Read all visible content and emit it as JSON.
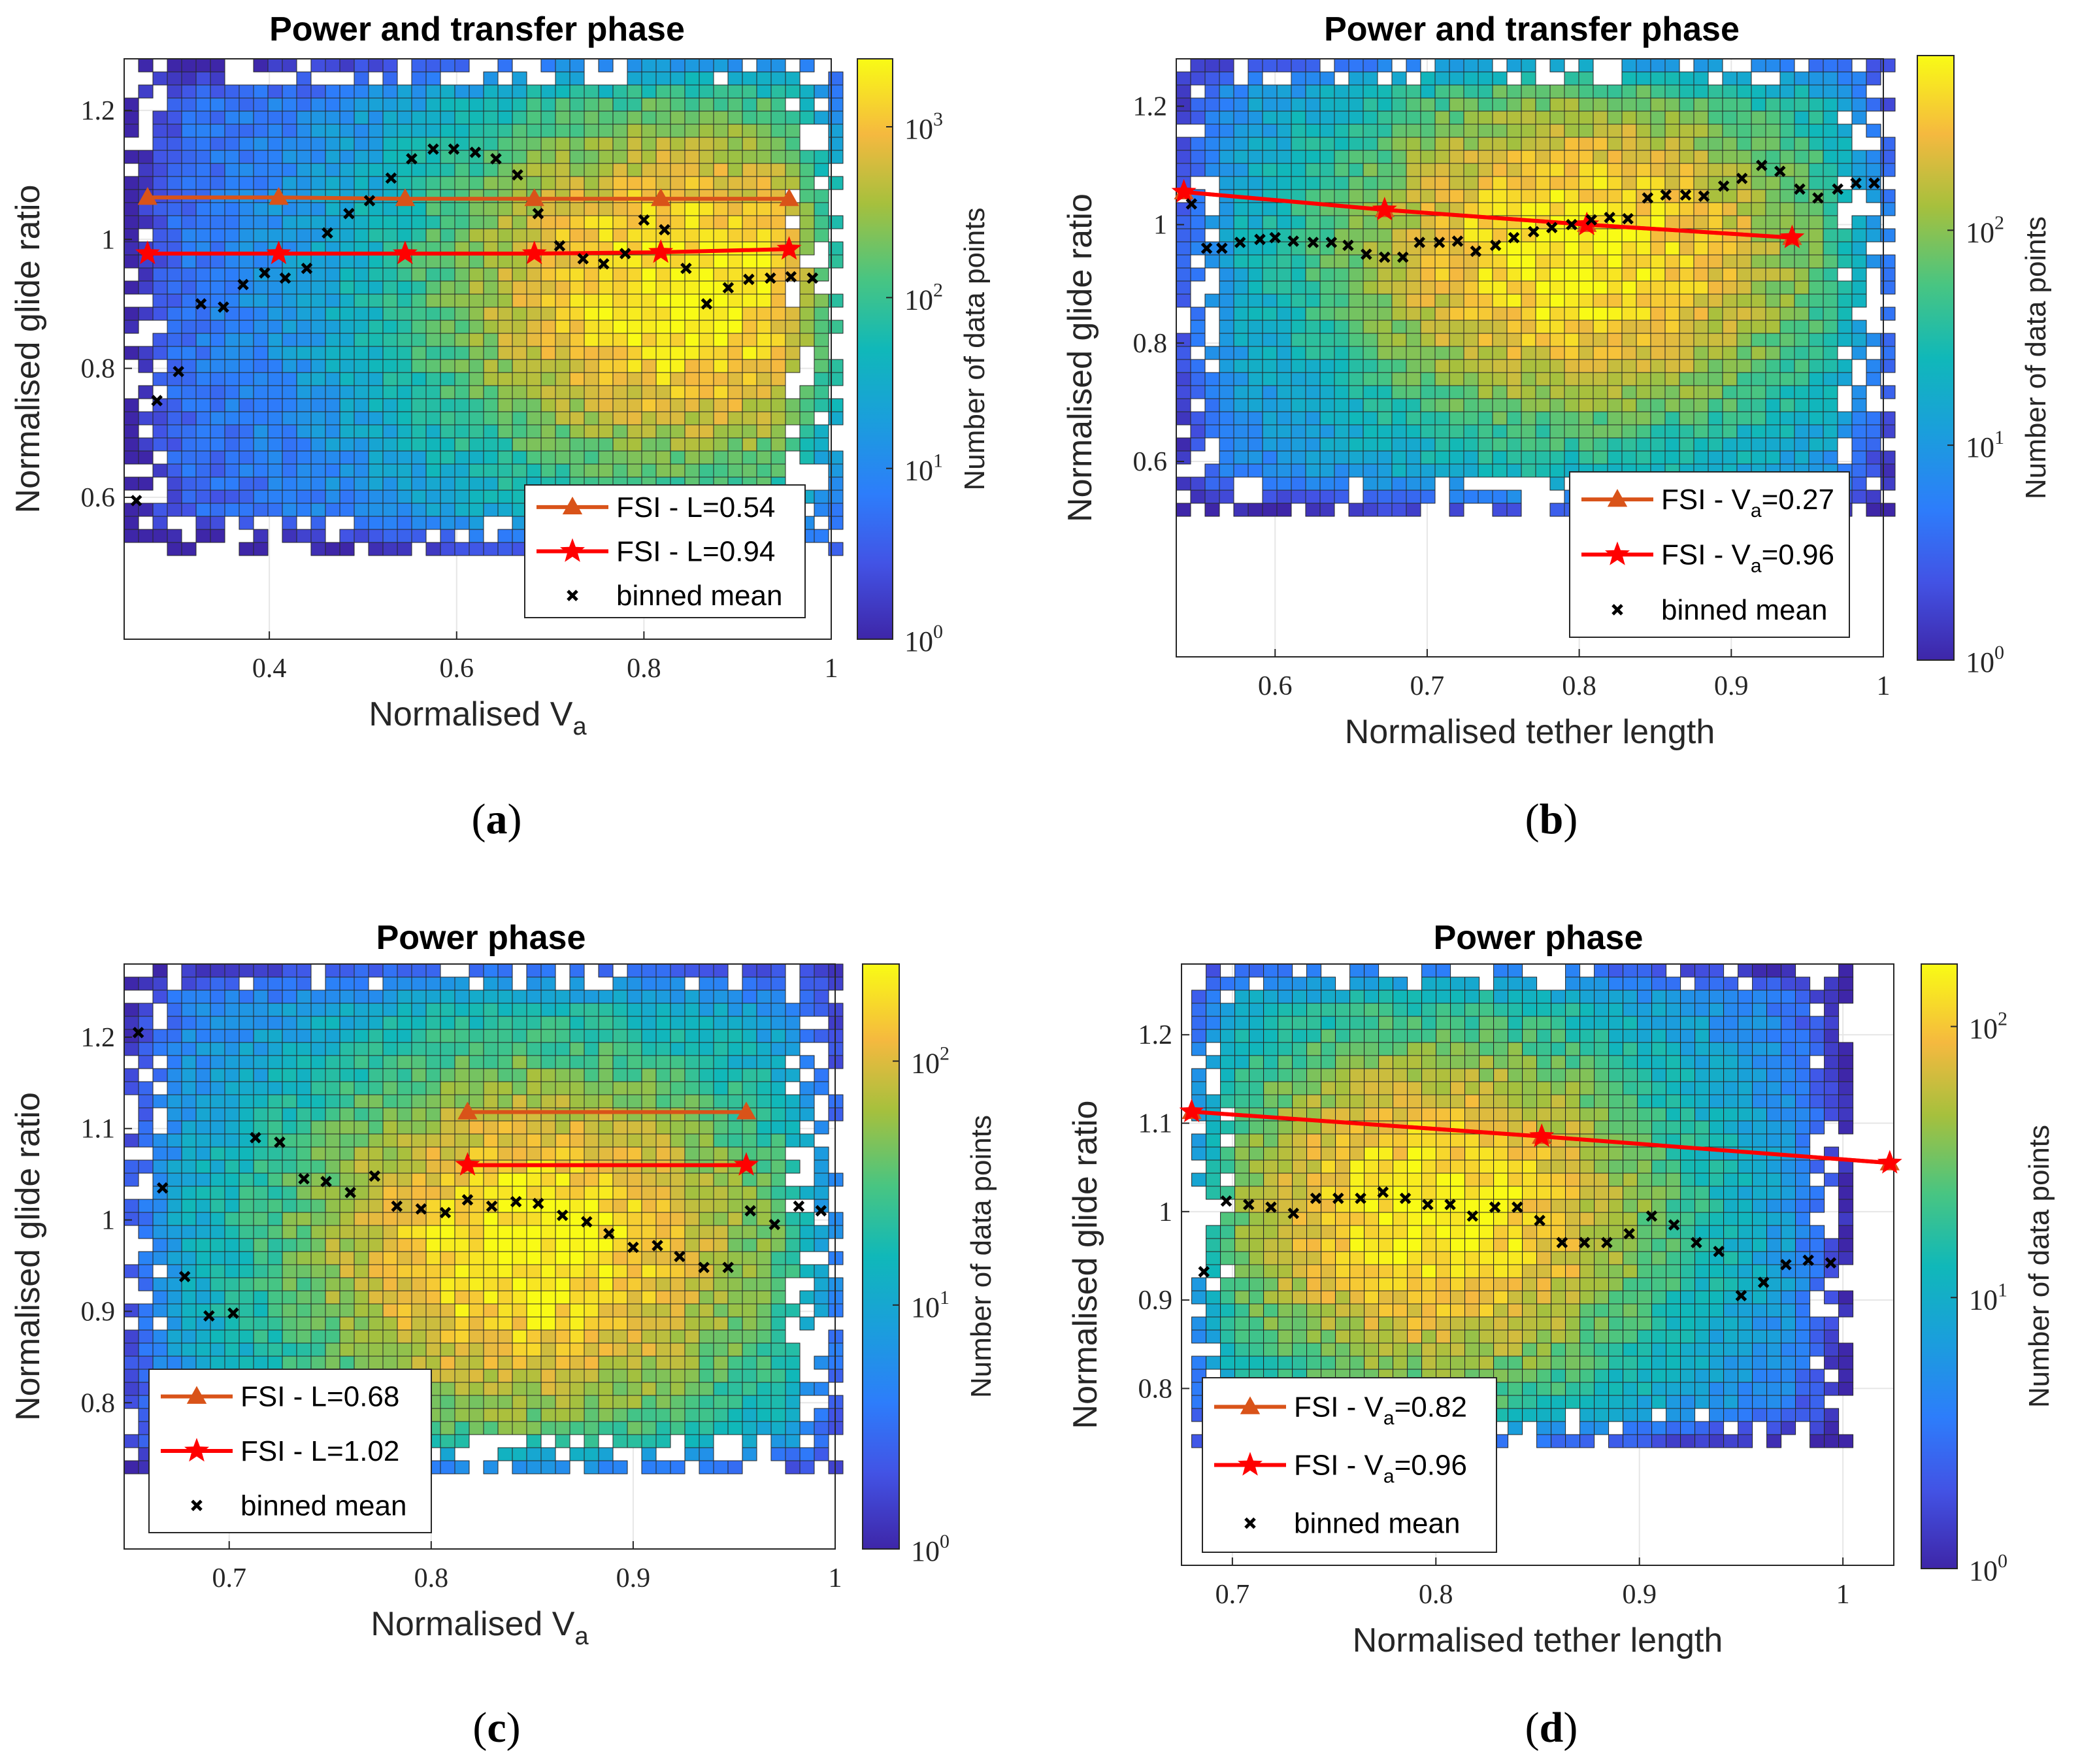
{
  "chart_data": [
    {
      "type": "heatmap",
      "panel_label": "a",
      "title": "Power and transfer phase",
      "xlabel": "Normalised V",
      "xlabel_sub": "a",
      "ylabel": "Normalised glide ratio",
      "xlim": [
        0.245,
        1.0
      ],
      "ylim": [
        0.38,
        1.28
      ],
      "xticks": [
        0.4,
        0.6,
        0.8,
        1
      ],
      "xtick_labels": [
        "0.4",
        "0.6",
        "0.8",
        "1"
      ],
      "yticks": [
        0.6,
        0.8,
        1.0,
        1.2
      ],
      "ytick_labels": [
        "0.6",
        "0.8",
        "1",
        "1.2"
      ],
      "colorbar": {
        "label": "Number of data points",
        "scale": "log",
        "min": 1,
        "max": 2500,
        "tick_exponents": [
          0,
          1,
          2,
          3
        ]
      },
      "heat": {
        "x_range": [
          0.245,
          1.0
        ],
        "y_range": [
          0.52,
          1.28
        ],
        "peak_x": 0.84,
        "peak_y": 0.92
      },
      "series": [
        {
          "name": "FSI - L=0.54",
          "marker": "triangle",
          "color": "#d95319",
          "x": [
            0.27,
            0.41,
            0.545,
            0.683,
            0.818,
            0.955
          ],
          "y": [
            1.065,
            1.065,
            1.063,
            1.063,
            1.063,
            1.063
          ]
        },
        {
          "name": "FSI - L=0.94",
          "marker": "star",
          "color": "#ff0000",
          "x": [
            0.27,
            0.41,
            0.545,
            0.683,
            0.818,
            0.955
          ],
          "y": [
            0.978,
            0.978,
            0.978,
            0.978,
            0.98,
            0.985
          ]
        },
        {
          "name": "binned mean",
          "marker": "x",
          "color": "#000000",
          "x": [
            0.258,
            0.28,
            0.303,
            0.327,
            0.351,
            0.372,
            0.395,
            0.417,
            0.44,
            0.462,
            0.485,
            0.507,
            0.53,
            0.552,
            0.575,
            0.597,
            0.62,
            0.642,
            0.665,
            0.687,
            0.71,
            0.735,
            0.757,
            0.78,
            0.8,
            0.822,
            0.845,
            0.867,
            0.89,
            0.912,
            0.935,
            0.957,
            0.98
          ],
          "y": [
            0.595,
            0.75,
            0.795,
            0.9,
            0.895,
            0.93,
            0.948,
            0.94,
            0.955,
            1.01,
            1.04,
            1.06,
            1.095,
            1.125,
            1.14,
            1.14,
            1.135,
            1.125,
            1.1,
            1.04,
            0.99,
            0.97,
            0.962,
            0.978,
            1.03,
            1.015,
            0.955,
            0.9,
            0.925,
            0.938,
            0.94,
            0.942,
            0.94
          ]
        }
      ],
      "legend": {
        "location": "lower-right"
      }
    },
    {
      "type": "heatmap",
      "panel_label": "b",
      "title": "Power and transfer phase",
      "xlabel": "Normalised tether length",
      "ylabel": "Normalised glide ratio",
      "xlim": [
        0.535,
        1.0
      ],
      "ylim": [
        0.27,
        1.28
      ],
      "xticks": [
        0.6,
        0.7,
        0.8,
        0.9,
        1
      ],
      "xtick_labels": [
        "0.6",
        "0.7",
        "0.8",
        "0.9",
        "1"
      ],
      "yticks": [
        0.6,
        0.8,
        1.0,
        1.2
      ],
      "ytick_labels": [
        "0.6",
        "0.8",
        "1",
        "1.2"
      ],
      "colorbar": {
        "label": "Number of data points",
        "scale": "log",
        "min": 1,
        "max": 650,
        "tick_exponents": [
          0,
          1,
          2
        ]
      },
      "heat": {
        "x_range": [
          0.535,
          1.0
        ],
        "y_range": [
          0.52,
          1.28
        ],
        "peak_x": 0.8,
        "peak_y": 0.95
      },
      "series": [
        {
          "name": "FSI - V_a=0.27",
          "marker": "triangle",
          "color": "#d95319",
          "x": [
            0.54,
            0.672,
            0.805,
            0.94
          ],
          "y": [
            1.055,
            1.025,
            1.0,
            0.978
          ]
        },
        {
          "name": "FSI - V_a=0.96",
          "marker": "star",
          "color": "#ff0000",
          "x": [
            0.54,
            0.672,
            0.805,
            0.94
          ],
          "y": [
            1.055,
            1.025,
            1.0,
            0.978
          ]
        },
        {
          "name": "binned mean",
          "marker": "x",
          "color": "#000000",
          "x": [
            0.545,
            0.555,
            0.565,
            0.577,
            0.59,
            0.6,
            0.612,
            0.625,
            0.637,
            0.648,
            0.66,
            0.672,
            0.684,
            0.695,
            0.708,
            0.72,
            0.732,
            0.745,
            0.757,
            0.77,
            0.782,
            0.795,
            0.808,
            0.82,
            0.832,
            0.845,
            0.857,
            0.87,
            0.882,
            0.895,
            0.907,
            0.92,
            0.932,
            0.945,
            0.957,
            0.97,
            0.982,
            0.994
          ],
          "y": [
            1.035,
            0.96,
            0.96,
            0.97,
            0.975,
            0.978,
            0.972,
            0.97,
            0.97,
            0.965,
            0.95,
            0.945,
            0.945,
            0.97,
            0.97,
            0.972,
            0.955,
            0.965,
            0.978,
            0.988,
            0.995,
            1.0,
            1.008,
            1.012,
            1.01,
            1.045,
            1.05,
            1.05,
            1.048,
            1.065,
            1.078,
            1.1,
            1.09,
            1.06,
            1.045,
            1.06,
            1.07,
            1.07
          ]
        }
      ],
      "legend": {
        "location": "lower-right"
      }
    },
    {
      "type": "heatmap",
      "panel_label": "c",
      "title": "Power phase",
      "xlabel": "Normalised V",
      "xlabel_sub": "a",
      "ylabel": "Normalised glide ratio",
      "xlim": [
        0.648,
        1.0
      ],
      "ylim": [
        0.64,
        1.28
      ],
      "xticks": [
        0.7,
        0.8,
        0.9,
        1
      ],
      "xtick_labels": [
        "0.7",
        "0.8",
        "0.9",
        "1"
      ],
      "yticks": [
        0.8,
        0.9,
        1.0,
        1.1,
        1.2
      ],
      "ytick_labels": [
        "0.8",
        "0.9",
        "1",
        "1.1",
        "1.2"
      ],
      "colorbar": {
        "label": "Number of data points",
        "scale": "log",
        "min": 1,
        "max": 250,
        "tick_exponents": [
          0,
          1,
          2
        ]
      },
      "heat": {
        "x_range": [
          0.648,
          1.0
        ],
        "y_range": [
          0.73,
          1.28
        ],
        "peak_x": 0.85,
        "peak_y": 0.97
      },
      "series": [
        {
          "name": "FSI - L=0.68",
          "marker": "triangle",
          "color": "#d95319",
          "x": [
            0.818,
            0.956
          ],
          "y": [
            1.118,
            1.118
          ]
        },
        {
          "name": "FSI - L=1.02",
          "marker": "star",
          "color": "#ff0000",
          "x": [
            0.818,
            0.956
          ],
          "y": [
            1.06,
            1.06
          ]
        },
        {
          "name": "binned mean",
          "marker": "x",
          "color": "#000000",
          "x": [
            0.655,
            0.667,
            0.678,
            0.69,
            0.702,
            0.713,
            0.725,
            0.737,
            0.748,
            0.76,
            0.772,
            0.783,
            0.795,
            0.807,
            0.818,
            0.83,
            0.842,
            0.853,
            0.865,
            0.877,
            0.888,
            0.9,
            0.912,
            0.923,
            0.935,
            0.947,
            0.958,
            0.97,
            0.982,
            0.993
          ],
          "y": [
            1.205,
            1.035,
            0.938,
            0.895,
            0.898,
            1.09,
            1.085,
            1.045,
            1.042,
            1.03,
            1.048,
            1.015,
            1.012,
            1.008,
            1.022,
            1.015,
            1.02,
            1.018,
            1.005,
            0.998,
            0.985,
            0.97,
            0.972,
            0.96,
            0.948,
            0.948,
            1.01,
            0.995,
            1.015,
            1.01
          ]
        }
      ],
      "legend": {
        "location": "lower-left"
      }
    },
    {
      "type": "heatmap",
      "panel_label": "d",
      "title": "Power phase",
      "xlabel": "Normalised tether length",
      "ylabel": "Normalised glide ratio",
      "xlim": [
        0.675,
        1.025
      ],
      "ylim": [
        0.6,
        1.28
      ],
      "xticks": [
        0.7,
        0.8,
        0.9,
        1
      ],
      "xtick_labels": [
        "0.7",
        "0.8",
        "0.9",
        "1"
      ],
      "yticks": [
        0.8,
        0.9,
        1.0,
        1.1,
        1.2
      ],
      "ytick_labels": [
        "0.8",
        "0.9",
        "1",
        "1.1",
        "1.2"
      ],
      "colorbar": {
        "label": "Number of data points",
        "scale": "log",
        "min": 1,
        "max": 170,
        "tick_exponents": [
          0,
          1,
          2
        ]
      },
      "heat": {
        "x_range": [
          0.68,
          1.0
        ],
        "y_range": [
          0.74,
          1.28
        ],
        "peak_x": 0.8,
        "peak_y": 1.0
      },
      "series": [
        {
          "name": "FSI - V_a=0.82",
          "marker": "triangle",
          "color": "#d95319",
          "x": [
            0.68,
            0.852,
            1.023
          ],
          "y": [
            1.113,
            1.085,
            1.055
          ]
        },
        {
          "name": "FSI - V_a=0.96",
          "marker": "star",
          "color": "#ff0000",
          "x": [
            0.68,
            0.852,
            1.023
          ],
          "y": [
            1.113,
            1.085,
            1.055
          ]
        },
        {
          "name": "binned mean",
          "marker": "x",
          "color": "#000000",
          "x": [
            0.686,
            0.697,
            0.708,
            0.719,
            0.73,
            0.741,
            0.752,
            0.763,
            0.774,
            0.785,
            0.796,
            0.807,
            0.818,
            0.829,
            0.84,
            0.851,
            0.862,
            0.873,
            0.884,
            0.895,
            0.906,
            0.917,
            0.928,
            0.939,
            0.95,
            0.961,
            0.972,
            0.983,
            0.994
          ],
          "y": [
            0.932,
            1.012,
            1.008,
            1.005,
            0.998,
            1.015,
            1.015,
            1.015,
            1.022,
            1.015,
            1.008,
            1.008,
            0.995,
            1.005,
            1.005,
            0.99,
            0.965,
            0.965,
            0.965,
            0.975,
            0.995,
            0.985,
            0.965,
            0.955,
            0.905,
            0.92,
            0.94,
            0.945,
            0.942
          ]
        }
      ],
      "legend": {
        "location": "lower-left"
      }
    }
  ]
}
